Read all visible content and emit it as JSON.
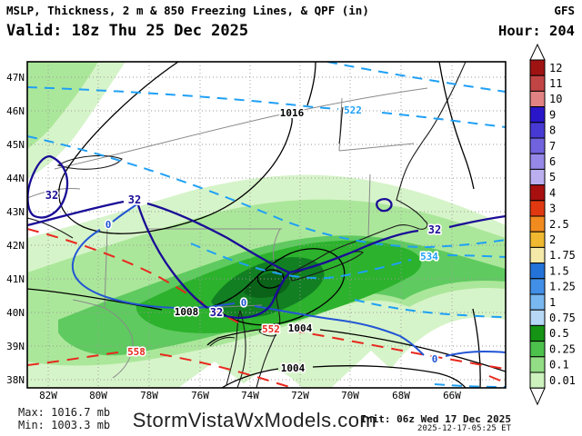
{
  "header": {
    "title": "MSLP, Thickness, 2 m & 850 Freezing Lines, & QPF (in)",
    "model": "GFS",
    "valid": "Valid: 18z Thu 25 Dec 2025",
    "hour": "Hour: 204"
  },
  "footer": {
    "max": "Max: 1016.7 mb",
    "min": "Min: 1003.3 mb",
    "site": "StormVistaWxModels.com",
    "init": "Init: 06z Wed 17 Dec 2025",
    "stamp": "2025-12-17-05:25 ET"
  },
  "chart_data": {
    "type": "heatmap",
    "title": "MSLP, Thickness, 2 m & 850 Freezing Lines, & QPF (in)",
    "model": "GFS",
    "valid_time": "18z Thu 25 Dec 2025",
    "forecast_hour": 204,
    "init_time": "06z Wed 17 Dec 2025",
    "extremes": {
      "max_mslp_mb": 1016.7,
      "min_mslp_mb": 1003.3
    },
    "x_axis": {
      "label": "longitude",
      "ticks": [
        "82W",
        "80W",
        "78W",
        "76W",
        "74W",
        "72W",
        "70W",
        "68W",
        "66W"
      ]
    },
    "y_axis": {
      "label": "latitude",
      "ticks": [
        "47N",
        "46N",
        "45N",
        "44N",
        "43N",
        "42N",
        "41N",
        "40N",
        "39N",
        "38N"
      ]
    },
    "colorbar": {
      "units": "QPF (in)",
      "levels": [
        "12",
        "11",
        "10",
        "9",
        "8",
        "7",
        "6",
        "5",
        "4",
        "3",
        "2.5",
        "2",
        "1.75",
        "1.5",
        "1.25",
        "1",
        "0.75",
        "0.5",
        "0.25",
        "0.1",
        "0.01"
      ],
      "colors": [
        "#a01313",
        "#c24545",
        "#e28383",
        "#2a16c9",
        "#4739d4",
        "#7163de",
        "#9588e8",
        "#bbaff0",
        "#a80f0f",
        "#e03911",
        "#f28b1f",
        "#f0b830",
        "#f5e9a8",
        "#2373d9",
        "#418fe6",
        "#79b7f0",
        "#b6d8f6",
        "#149314",
        "#4cc14c",
        "#92dd85",
        "#cdf2bd"
      ]
    },
    "contours": [
      {
        "series": "MSLP (mb)",
        "color": "#000000",
        "style": "solid",
        "size": 11,
        "labels": [
          {
            "value": "1016",
            "x": 321,
            "y": 124
          },
          {
            "value": "1008",
            "x": 205,
            "y": 343
          },
          {
            "value": "1004",
            "x": 330,
            "y": 361
          },
          {
            "value": "1004",
            "x": 322,
            "y": 405
          }
        ]
      },
      {
        "series": "Thickness (dam)",
        "color": "#1fa0f5",
        "style": "dashed",
        "size": 11,
        "labels": [
          {
            "value": "522",
            "x": 388,
            "y": 121
          },
          {
            "value": "534",
            "x": 472,
            "y": 282
          }
        ]
      },
      {
        "series": "Thickness (dam)",
        "color": "#e8281e",
        "style": "dashed",
        "size": 11,
        "labels": [
          {
            "value": "552",
            "x": 298,
            "y": 362
          },
          {
            "value": "558",
            "x": 150,
            "y": 387
          }
        ]
      },
      {
        "series": "2 m freezing line (F)",
        "color": "#1a0d96",
        "style": "solid",
        "size": 12,
        "labels": [
          {
            "value": "32",
            "x": 57,
            "y": 215
          },
          {
            "value": "32",
            "x": 148,
            "y": 220
          },
          {
            "value": "32",
            "x": 238,
            "y": 344
          },
          {
            "value": "32",
            "x": 478,
            "y": 253
          }
        ]
      },
      {
        "series": "850 mb freezing line (C)",
        "color": "#2255d4",
        "style": "solid",
        "size": 11,
        "labels": [
          {
            "value": "0",
            "x": 119,
            "y": 247
          },
          {
            "value": "0",
            "x": 268,
            "y": 333
          },
          {
            "value": "0",
            "x": 478,
            "y": 395
          }
        ]
      }
    ]
  }
}
